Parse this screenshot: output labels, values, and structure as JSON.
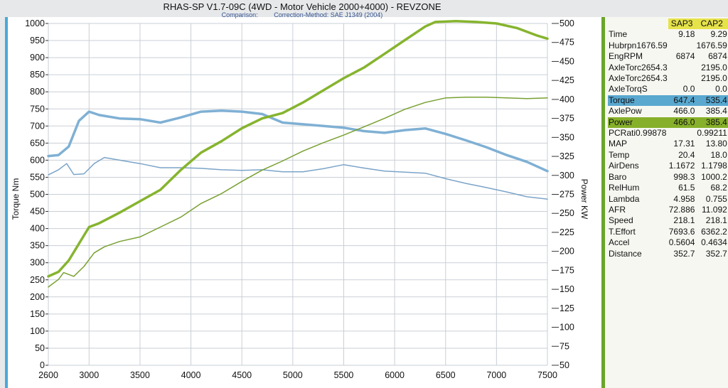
{
  "window": {
    "title": "RHAS-SP V1.7-09C  (4WD - Motor Vehicle 2000+4000) - REVZONE",
    "subtitle_left": "Comparison:",
    "subtitle_right": "Correction-Method: SAE J1349 (2004)"
  },
  "colors": {
    "torque_sap3": "#7fb0d4",
    "torque_cap2": "#7ba4c8",
    "power_sap3": "#86b42e",
    "power_cap2": "#78a030",
    "plot_border_left": "#4aa8d8",
    "plot_border_right": "#6aa52a",
    "grid": "#c9cfd6"
  },
  "panel": {
    "headers": [
      "SAP3",
      "CAP2"
    ],
    "rows": [
      {
        "label": "Time",
        "v1": "9.18",
        "v2": "9.29"
      },
      {
        "label": "Hubrpn1676.59",
        "v1": "",
        "v2": "1676.59"
      },
      {
        "label": "EngRPM",
        "v1": "6874",
        "v2": "6874"
      },
      {
        "label": "AxleTorc2654.3",
        "v1": "",
        "v2": "2195.0"
      },
      {
        "label": "AxleTorc2654.3",
        "v1": "",
        "v2": "2195.0"
      },
      {
        "label": "AxleTorqS",
        "v1": "0.0",
        "v2": "0.0"
      },
      {
        "label": "Torque",
        "v1": "647.4",
        "v2": "535.4",
        "hl": "torque"
      },
      {
        "label": "AxlePow",
        "v1": "466.0",
        "v2": "385.4"
      },
      {
        "label": "Power",
        "v1": "466.0",
        "v2": "385.4",
        "hl": "power"
      },
      {
        "label": "PCRati0.99878",
        "v1": "",
        "v2": "0.99211"
      },
      {
        "label": "MAP",
        "v1": "17.31",
        "v2": "13.80"
      },
      {
        "label": "Temp",
        "v1": "20.4",
        "v2": "18.0"
      },
      {
        "label": "AirDens",
        "v1": "1.1672",
        "v2": "1.1798"
      },
      {
        "label": "Baro",
        "v1": "998.3",
        "v2": "1000.2"
      },
      {
        "label": "RelHum",
        "v1": "61.5",
        "v2": "68.2"
      },
      {
        "label": "Lambda",
        "v1": "4.958",
        "v2": "0.755"
      },
      {
        "label": "AFR",
        "v1": "72.886",
        "v2": "11.092"
      },
      {
        "label": "Speed",
        "v1": "218.1",
        "v2": "218.1"
      },
      {
        "label": "T.Effort",
        "v1": "7693.6",
        "v2": "6362.2"
      },
      {
        "label": "Accel",
        "v1": "0.5604",
        "v2": "0.4634"
      },
      {
        "label": "Distance",
        "v1": "352.7",
        "v2": "352.7"
      }
    ]
  },
  "chart_data": {
    "type": "line",
    "title": "RHAS-SP V1.7-09C  (4WD - Motor Vehicle 2000+4000) - REVZONE",
    "xlabel": "",
    "ylabel": "Torque Nm",
    "y2label": "Power KW",
    "xlim": [
      2600,
      7500
    ],
    "ylim": [
      0,
      1000
    ],
    "y2lim": [
      50,
      500
    ],
    "x_ticks": [
      2600,
      3000,
      3500,
      4000,
      4500,
      5000,
      5500,
      6000,
      6500,
      7000,
      7500
    ],
    "y_ticks": [
      0,
      50,
      100,
      150,
      200,
      250,
      300,
      350,
      400,
      450,
      500,
      550,
      600,
      650,
      700,
      750,
      800,
      850,
      900,
      950,
      1000
    ],
    "y2_ticks": [
      50,
      75,
      100,
      125,
      150,
      175,
      200,
      225,
      250,
      275,
      300,
      325,
      350,
      375,
      400,
      425,
      450,
      475,
      500
    ],
    "grid": true,
    "series": [
      {
        "name": "SAP3",
        "axis": "left",
        "role": "torque",
        "width": 3.5,
        "x": [
          2600,
          2700,
          2800,
          2900,
          3000,
          3100,
          3300,
          3500,
          3700,
          3900,
          4100,
          4300,
          4500,
          4700,
          4900,
          5100,
          5300,
          5500,
          5700,
          5900,
          6100,
          6300,
          6500,
          6700,
          6900,
          7100,
          7300,
          7500
        ],
        "y": [
          612,
          615,
          640,
          715,
          742,
          732,
          722,
          720,
          710,
          725,
          742,
          745,
          742,
          735,
          710,
          705,
          700,
          695,
          685,
          680,
          688,
          693,
          677,
          658,
          638,
          615,
          595,
          568
        ]
      },
      {
        "name": "CAP2",
        "axis": "left",
        "role": "torque",
        "width": 1.5,
        "x": [
          2600,
          2700,
          2780,
          2850,
          2950,
          3050,
          3150,
          3300,
          3500,
          3700,
          3900,
          4100,
          4300,
          4500,
          4700,
          4900,
          5100,
          5300,
          5500,
          5700,
          5900,
          6100,
          6300,
          6500,
          6700,
          6900,
          7100,
          7300,
          7500
        ],
        "y": [
          557,
          572,
          590,
          558,
          560,
          590,
          608,
          600,
          590,
          578,
          578,
          576,
          572,
          570,
          572,
          566,
          566,
          575,
          587,
          577,
          568,
          565,
          562,
          546,
          532,
          520,
          507,
          493,
          486
        ]
      },
      {
        "name": "SAP3",
        "axis": "right",
        "role": "power",
        "width": 3.5,
        "x": [
          2600,
          2700,
          2800,
          2900,
          3000,
          3100,
          3300,
          3500,
          3700,
          3900,
          4100,
          4300,
          4500,
          4700,
          4900,
          5100,
          5300,
          5500,
          5700,
          5900,
          6100,
          6300,
          6400,
          6600,
          6800,
          7000,
          7200,
          7400,
          7500
        ],
        "y": [
          167,
          173,
          188,
          210,
          232,
          237,
          251,
          266,
          281,
          307,
          330,
          345,
          362,
          375,
          382,
          396,
          412,
          428,
          442,
          460,
          478,
          496,
          502,
          503,
          502,
          500,
          494,
          484,
          480
        ]
      },
      {
        "name": "CAP2",
        "axis": "right",
        "role": "power",
        "width": 1.5,
        "x": [
          2600,
          2700,
          2750,
          2850,
          2950,
          3050,
          3150,
          3300,
          3500,
          3700,
          3900,
          4100,
          4300,
          4500,
          4700,
          4900,
          5100,
          5300,
          5500,
          5700,
          5900,
          6100,
          6300,
          6500,
          6700,
          6900,
          7100,
          7300,
          7500
        ],
        "y": [
          153,
          163,
          172,
          167,
          180,
          198,
          206,
          213,
          219,
          232,
          245,
          263,
          276,
          292,
          307,
          319,
          332,
          343,
          353,
          364,
          375,
          387,
          396,
          402,
          403,
          403,
          402,
          401,
          402
        ]
      }
    ]
  }
}
